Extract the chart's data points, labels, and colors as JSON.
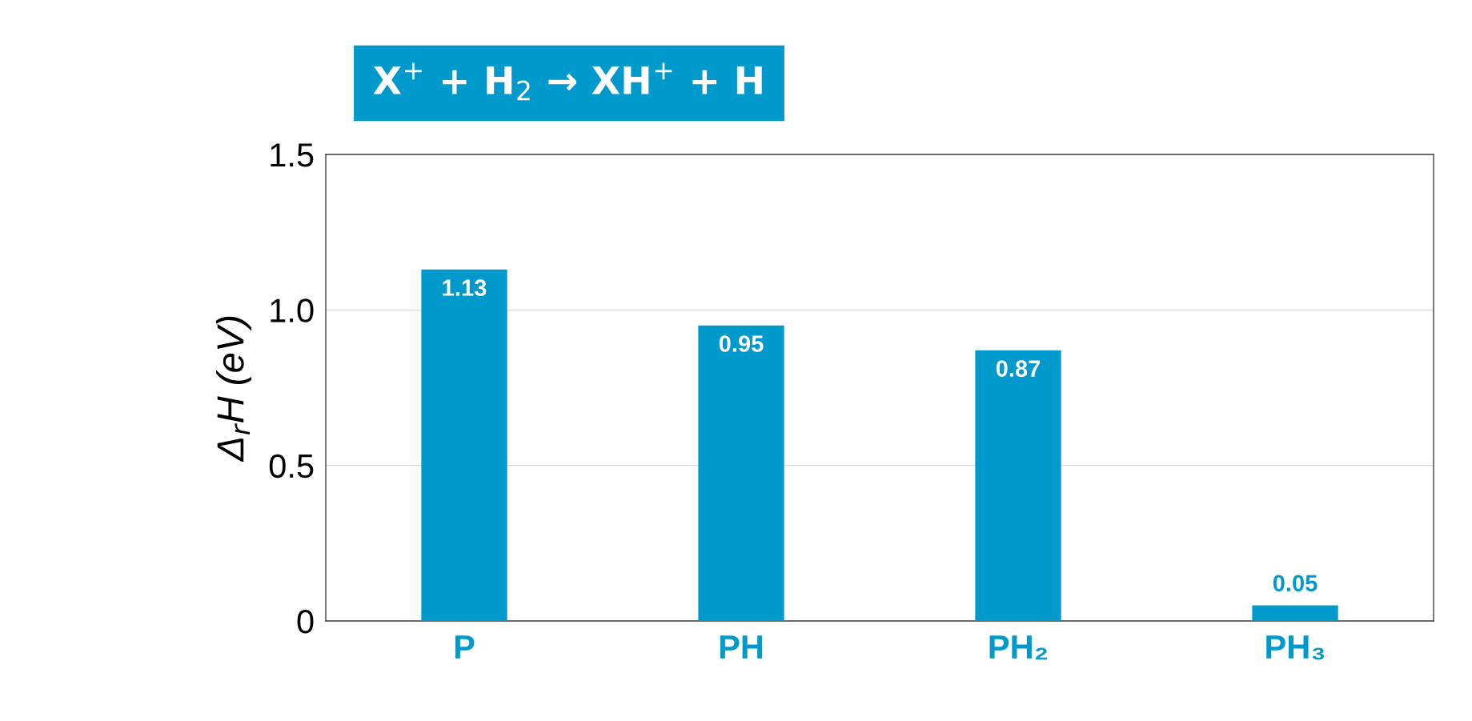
{
  "chart_data": {
    "type": "bar",
    "title": "X$^{+}$ + H$_{2}$ → XH$^{+}$ + H",
    "ylabel": "Δ$_{r}$H (eV)",
    "categories": [
      "P",
      "PH",
      "PH₂",
      "PH₃"
    ],
    "values": [
      1.13,
      0.95,
      0.87,
      0.05
    ],
    "color": "#0099cc",
    "ylim": [
      0,
      1.5
    ],
    "yticks": [
      0,
      0.5,
      {
        "value": 1,
        "label": "1.0"
      },
      1.5
    ],
    "grid": "y",
    "data_labels": true
  }
}
